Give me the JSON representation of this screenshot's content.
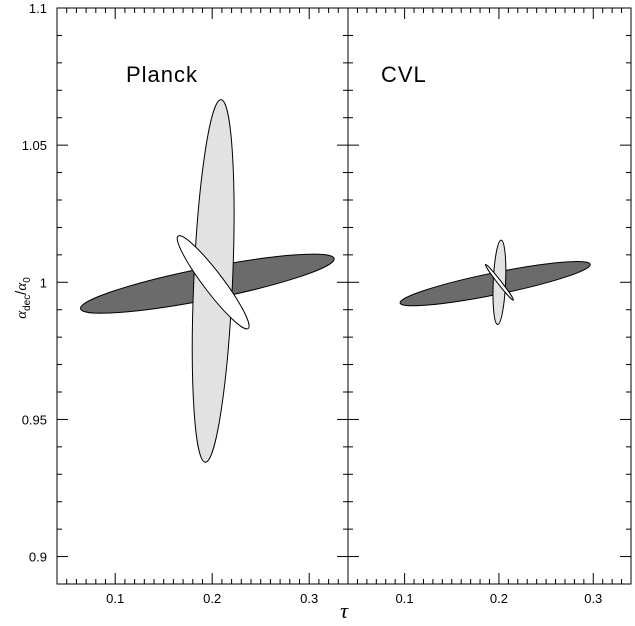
{
  "chart_data": {
    "type": "contour",
    "panels": [
      {
        "label": "Planck",
        "x_range": [
          0.04,
          0.34
        ],
        "ellipses": [
          {
            "fill": "#6b6b6b",
            "center": [
              0.195,
              0.9995
            ],
            "semi_major": 0.131,
            "semi_minor": 0.0058,
            "angle_deg": -4.0
          },
          {
            "fill": "#e2e2e2",
            "center": [
              0.201,
              1.0005
            ],
            "semi_major": 0.0666,
            "semi_minor": 0.019,
            "angle_deg": -83.0
          },
          {
            "fill": "#ffffff",
            "center": [
              0.201,
              1.0
            ],
            "semi_major": 0.0084,
            "semi_minor": 0.0218,
            "angle_deg": -15.0
          }
        ]
      },
      {
        "label": "CVL",
        "x_range": [
          0.04,
          0.34
        ],
        "ellipses": [
          {
            "fill": "#6b6b6b",
            "center": [
              0.196,
              0.9995
            ],
            "semi_major": 0.101,
            "semi_minor": 0.004,
            "angle_deg": -4.0
          },
          {
            "fill": "#e2e2e2",
            "center": [
              0.2005,
              1.0
            ],
            "semi_major": 0.0155,
            "semi_minor": 0.0062,
            "angle_deg": -83.0
          },
          {
            "fill": "#ffffff",
            "center": [
              0.2005,
              1.0
            ],
            "semi_major": 0.0016,
            "semi_minor": 0.0085,
            "angle_deg": -15.0
          }
        ]
      }
    ],
    "xlabel": "τ",
    "ylabel_main": "α",
    "ylabel_num_sub": "dec",
    "ylabel_den_sub": "0",
    "ylim": [
      0.89,
      1.1
    ],
    "x_ticks": [
      "0.1",
      "0.2",
      "0.3"
    ],
    "x_tick_values": [
      0.1,
      0.2,
      0.3
    ],
    "y_ticks": [
      "0.9",
      "0.95",
      "1",
      "1.05",
      "1.1"
    ],
    "y_tick_values": [
      0.9,
      0.95,
      1.0,
      1.05,
      1.1
    ],
    "grid": false
  }
}
